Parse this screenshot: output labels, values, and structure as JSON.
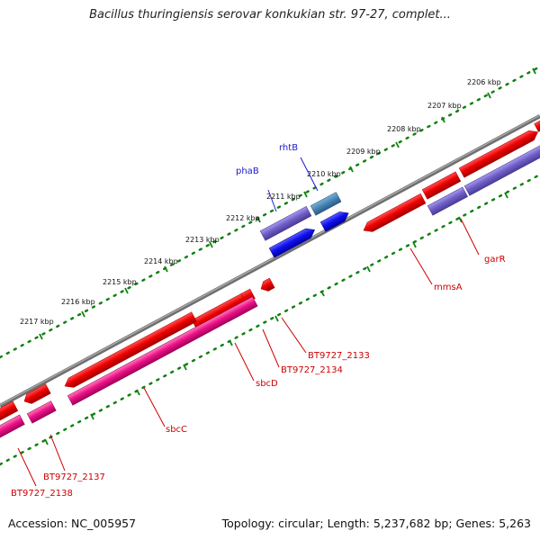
{
  "map": {
    "title": "Bacillus thuringiensis serovar konkukian str. 97-27, complet...",
    "accession": "Accession: NC_005957",
    "topology": "Topology: circular; Length: 5,237,682 bp; Genes: 5,263"
  },
  "ticks": [
    {
      "id": "2206",
      "label": "2206 kbp"
    },
    {
      "id": "2207",
      "label": "2207 kbp"
    },
    {
      "id": "2208",
      "label": "2208 kbp"
    },
    {
      "id": "2209",
      "label": "2209 kbp"
    },
    {
      "id": "2210",
      "label": "2210 kbp"
    },
    {
      "id": "2211",
      "label": "2211 kbp"
    },
    {
      "id": "2212",
      "label": "2212 kbp"
    },
    {
      "id": "2213",
      "label": "2213 kbp"
    },
    {
      "id": "2214",
      "label": "2214 kbp"
    },
    {
      "id": "2215",
      "label": "2215 kbp"
    },
    {
      "id": "2216",
      "label": "2216 kbp"
    },
    {
      "id": "2217",
      "label": "2217 kbp"
    }
  ],
  "genes": {
    "garR": "garR",
    "mmsA": "mmsA",
    "rhtB": "rhtB",
    "phaB": "phaB",
    "bt2133": "BT9727_2133",
    "bt2134": "BT9727_2134",
    "sbcD": "sbcD",
    "sbcC": "sbcC",
    "bt2137": "BT9727_2137",
    "bt2138": "BT9727_2138"
  },
  "colors": {
    "cds": "#ee0000",
    "cds_rna": "#ff1493",
    "blast_purple": "#7b68cc",
    "blast_blue": "#1010ee",
    "teal": "#4682b4",
    "backbone": "#808080",
    "tick": "#108010"
  }
}
